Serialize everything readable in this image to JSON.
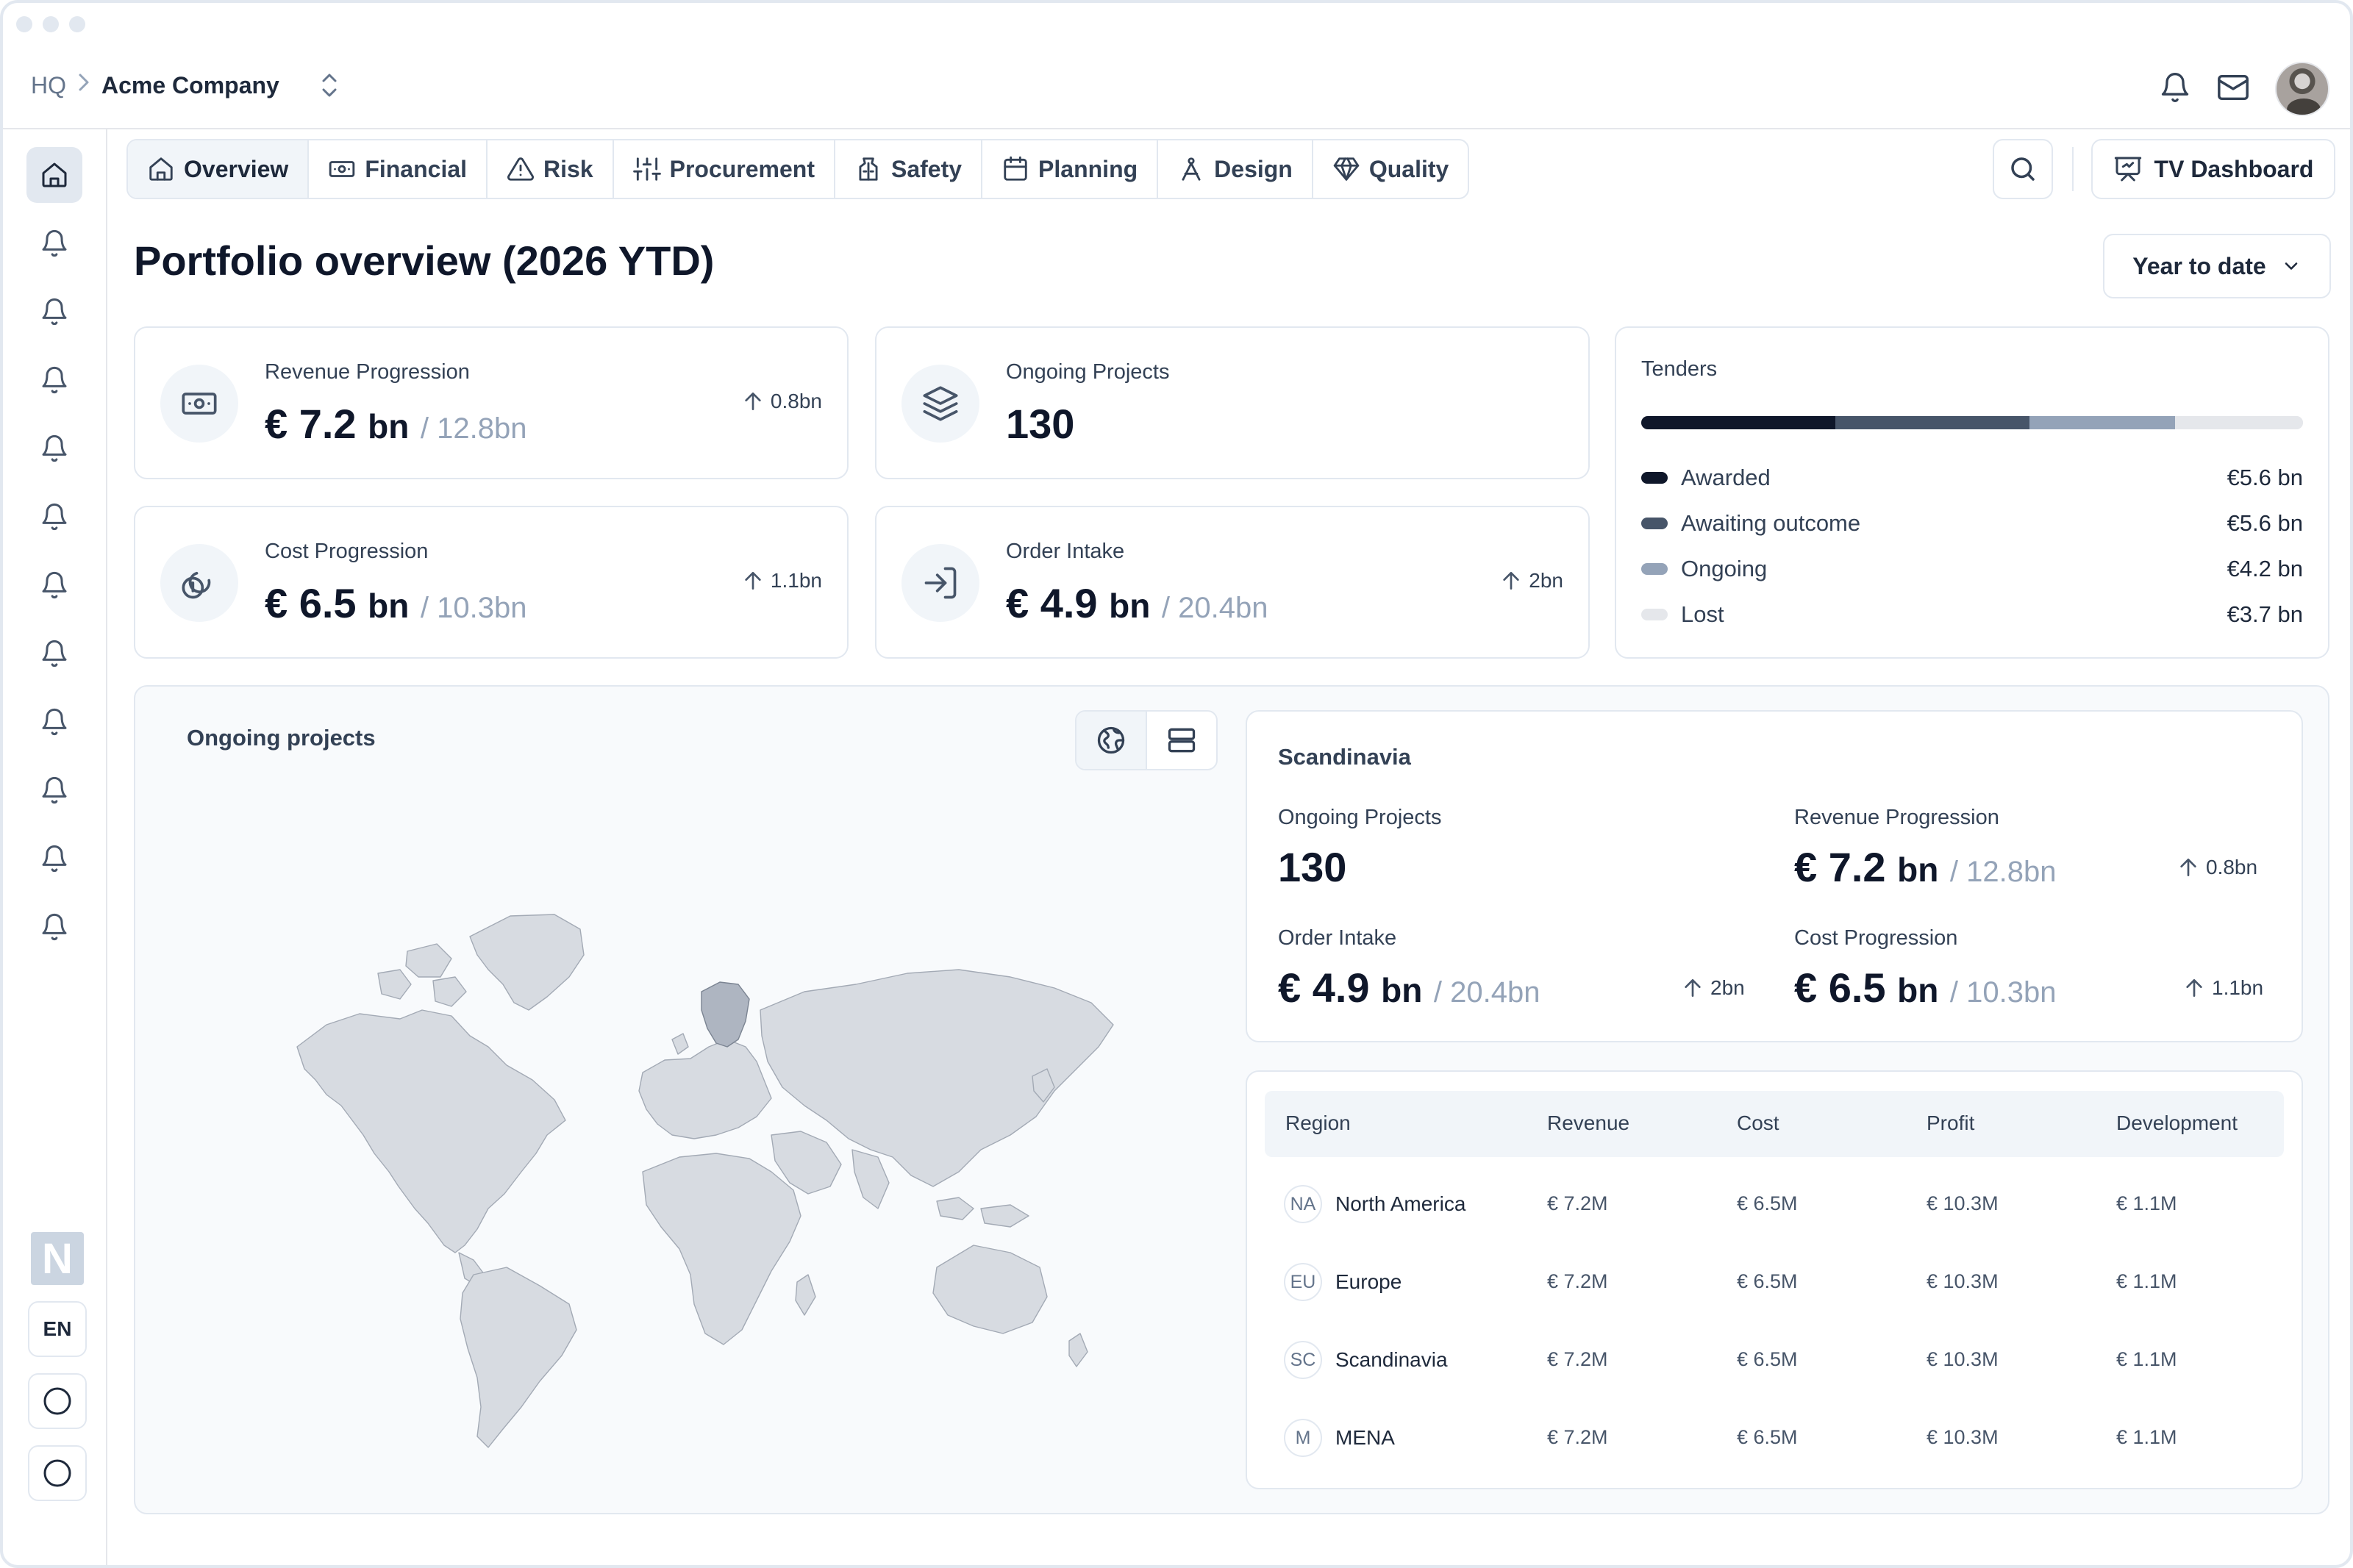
{
  "breadcrumb": {
    "root": "HQ",
    "company": "Acme Company"
  },
  "header_icons": [
    "bell-icon",
    "mail-icon"
  ],
  "tabs": [
    {
      "label": "Overview",
      "icon": "home-icon",
      "active": true
    },
    {
      "label": "Financial",
      "icon": "banknote-icon"
    },
    {
      "label": "Risk",
      "icon": "warning-triangle-icon"
    },
    {
      "label": "Procurement",
      "icon": "sliders-icon"
    },
    {
      "label": "Safety",
      "icon": "vest-icon"
    },
    {
      "label": "Planning",
      "icon": "calendar-icon"
    },
    {
      "label": "Design",
      "icon": "compass-icon"
    },
    {
      "label": "Quality",
      "icon": "diamond-icon"
    }
  ],
  "toolbar": {
    "tv_label": "TV Dashboard"
  },
  "page": {
    "title": "Portfolio overview (2026 YTD)",
    "period": "Year to date"
  },
  "kpis": {
    "revenue": {
      "label": "Revenue Progression",
      "value": "€ 7.2",
      "unit": "bn",
      "target": "/ 12.8bn",
      "delta": "0.8bn"
    },
    "projects": {
      "label": "Ongoing Projects",
      "value": "130"
    },
    "cost": {
      "label": "Cost Progression",
      "value": "€ 6.5",
      "unit": "bn",
      "target": "/ 10.3bn",
      "delta": "1.1bn"
    },
    "order": {
      "label": "Order Intake",
      "value": "€ 4.9",
      "unit": "bn",
      "target": "/ 20.4bn",
      "delta": "2bn"
    }
  },
  "tenders": {
    "title": "Tenders",
    "items": [
      {
        "label": "Awarded",
        "value": "€5.6 bn",
        "amount": 5.6,
        "color": "#0f172a"
      },
      {
        "label": "Awaiting outcome",
        "value": "€5.6 bn",
        "amount": 5.6,
        "color": "#475569"
      },
      {
        "label": "Ongoing",
        "value": "€4.2 bn",
        "amount": 4.2,
        "color": "#94a3b8"
      },
      {
        "label": "Lost",
        "value": "€3.7 bn",
        "amount": 3.7,
        "color": "#e5e7eb"
      }
    ]
  },
  "map": {
    "title": "Ongoing projects",
    "highlight_region": "Scandinavia"
  },
  "region": {
    "title": "Scandinavia",
    "projects": {
      "label": "Ongoing Projects",
      "value": "130"
    },
    "revenue": {
      "label": "Revenue Progression",
      "value": "€ 7.2",
      "unit": "bn",
      "target": "/ 12.8bn",
      "delta": "0.8bn"
    },
    "order": {
      "label": "Order Intake",
      "value": "€ 4.9",
      "unit": "bn",
      "target": "/ 20.4bn",
      "delta": "2bn"
    },
    "cost": {
      "label": "Cost Progression",
      "value": "€ 6.5",
      "unit": "bn",
      "target": "/ 10.3bn",
      "delta": "1.1bn"
    }
  },
  "table": {
    "headers": [
      "Region",
      "Revenue",
      "Cost",
      "Profit",
      "Development"
    ],
    "rows": [
      {
        "abbr": "NA",
        "name": "North America",
        "revenue": "€ 7.2M",
        "cost": "€ 6.5M",
        "profit": "€ 10.3M",
        "development": "€ 1.1M"
      },
      {
        "abbr": "EU",
        "name": "Europe",
        "revenue": "€ 7.2M",
        "cost": "€ 6.5M",
        "profit": "€ 10.3M",
        "development": "€ 1.1M"
      },
      {
        "abbr": "SC",
        "name": "Scandinavia",
        "revenue": "€ 7.2M",
        "cost": "€ 6.5M",
        "profit": "€ 10.3M",
        "development": "€ 1.1M"
      },
      {
        "abbr": "M",
        "name": "MENA",
        "revenue": "€ 7.2M",
        "cost": "€ 6.5M",
        "profit": "€ 10.3M",
        "development": "€ 1.1M"
      }
    ]
  },
  "sidebar": {
    "items": [
      "home-icon",
      "bell-icon",
      "bell-icon",
      "bell-icon",
      "bell-icon",
      "bell-icon",
      "bell-icon",
      "bell-icon",
      "bell-icon",
      "bell-icon",
      "bell-icon",
      "bell-icon"
    ],
    "logo_letter": "N",
    "language": "EN"
  }
}
